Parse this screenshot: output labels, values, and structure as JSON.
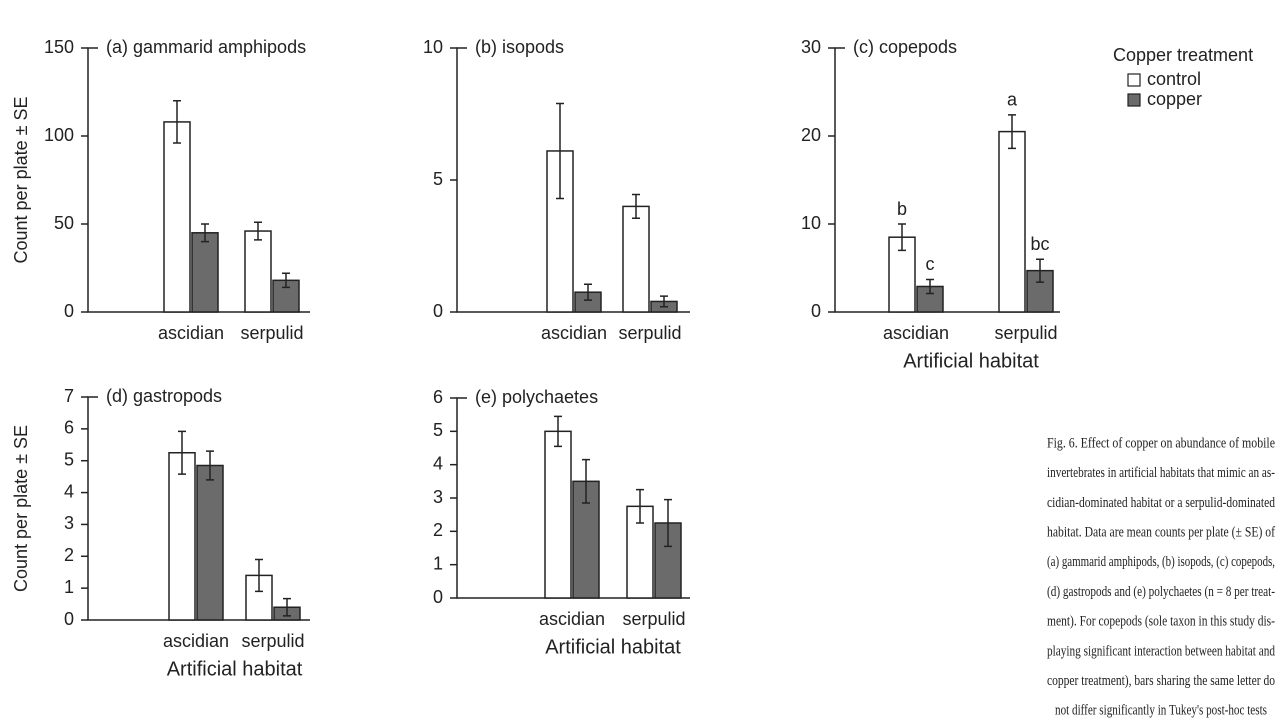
{
  "chart_data": [
    {
      "type": "bar",
      "title": "(a) gammarid amphipods",
      "ylabel": "Count per plate ± SE",
      "categories": [
        "ascidian",
        "serpulid"
      ],
      "series": [
        {
          "name": "control",
          "color": "#ffffff",
          "values": [
            108,
            46
          ],
          "errors": [
            12,
            5
          ]
        },
        {
          "name": "copper",
          "color": "#6b6b6b",
          "values": [
            45,
            18
          ],
          "errors": [
            5,
            4
          ]
        }
      ],
      "ylim": [
        0,
        150
      ],
      "yticks": [
        0,
        50,
        100,
        150
      ]
    },
    {
      "type": "bar",
      "title": "(b) isopods",
      "categories": [
        "ascidian",
        "serpulid"
      ],
      "series": [
        {
          "name": "control",
          "color": "#ffffff",
          "values": [
            6.1,
            4.0
          ],
          "errors": [
            1.8,
            0.45
          ]
        },
        {
          "name": "copper",
          "color": "#6b6b6b",
          "values": [
            0.75,
            0.4
          ],
          "errors": [
            0.3,
            0.2
          ]
        }
      ],
      "ylim": [
        0,
        10
      ],
      "yticks": [
        0,
        5,
        10
      ]
    },
    {
      "type": "bar",
      "title": "(c) copepods",
      "xlabel": "Artificial habitat",
      "categories": [
        "ascidian",
        "serpulid"
      ],
      "series": [
        {
          "name": "control",
          "color": "#ffffff",
          "values": [
            8.5,
            20.5
          ],
          "errors": [
            1.5,
            1.9
          ],
          "letters": [
            "b",
            "a"
          ]
        },
        {
          "name": "copper",
          "color": "#6b6b6b",
          "values": [
            2.9,
            4.7
          ],
          "errors": [
            0.8,
            1.3
          ],
          "letters": [
            "c",
            "bc"
          ]
        }
      ],
      "ylim": [
        0,
        30
      ],
      "yticks": [
        0,
        10,
        20,
        30
      ]
    },
    {
      "type": "bar",
      "title": "(d) gastropods",
      "ylabel": "Count per plate ± SE",
      "xlabel": "Artificial habitat",
      "categories": [
        "ascidian",
        "serpulid"
      ],
      "series": [
        {
          "name": "control",
          "color": "#ffffff",
          "values": [
            5.25,
            1.4
          ],
          "errors": [
            0.67,
            0.5
          ]
        },
        {
          "name": "copper",
          "color": "#6b6b6b",
          "values": [
            4.85,
            0.4
          ],
          "errors": [
            0.45,
            0.27
          ]
        }
      ],
      "ylim": [
        0,
        7
      ],
      "yticks": [
        0,
        1,
        2,
        3,
        4,
        5,
        6,
        7
      ]
    },
    {
      "type": "bar",
      "title": "(e) polychaetes",
      "xlabel": "Artificial habitat",
      "categories": [
        "ascidian",
        "serpulid"
      ],
      "series": [
        {
          "name": "control",
          "color": "#ffffff",
          "values": [
            5.0,
            2.75
          ],
          "errors": [
            0.45,
            0.5
          ]
        },
        {
          "name": "copper",
          "color": "#6b6b6b",
          "values": [
            3.5,
            2.25
          ],
          "errors": [
            0.65,
            0.7
          ]
        }
      ],
      "ylim": [
        0,
        6
      ],
      "yticks": [
        0,
        1,
        2,
        3,
        4,
        5,
        6
      ]
    }
  ],
  "legend": {
    "title": "Copper treatment"
  },
  "caption": [
    "Fig. 6. Effect of copper on abundance of mobile",
    "invertebrates in artificial habitats that mimic an as-",
    "cidian-dominated habitat or a serpulid-dominated",
    "habitat. Data are mean counts per plate (± SE) of",
    "(a) gammarid amphipods, (b) isopods, (c) copepods,",
    "(d) gastropods and (e) polychaetes (n = 8 per treat-",
    "ment). For copepods (sole taxon in this study dis-",
    "playing significant interaction between habitat and",
    "copper treatment), bars sharing the same letter do",
    "not differ significantly in Tukey's post-hoc tests"
  ]
}
